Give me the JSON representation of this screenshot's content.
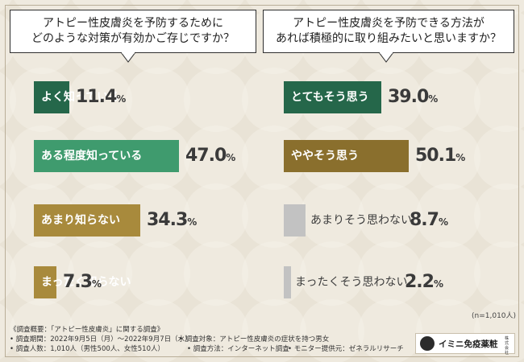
{
  "questions": {
    "left": [
      "アトピー性皮膚炎を予防するために",
      "どのような対策が有効かご存じですか？"
    ],
    "right": [
      "アトピー性皮膚炎を予防できる方法が",
      "あれば積極的に取り組みたいと思いますか？"
    ]
  },
  "chart_data": [
    {
      "type": "bar",
      "categories": [
        "よく知っている",
        "ある程度知っている",
        "あまり知らない",
        "まったく知らない"
      ],
      "values": [
        11.4,
        47.0,
        34.3,
        7.3
      ],
      "value_labels": [
        "11.4",
        "47.0",
        "34.3",
        "7.3"
      ],
      "unit": "%",
      "colors": [
        "#25674a",
        "#3f9b6e",
        "#a88a3c",
        "#a88a3c"
      ],
      "title": "アトピー性皮膚炎を予防するためにどのような対策が有効かご存じですか？"
    },
    {
      "type": "bar",
      "categories": [
        "とてもそう思う",
        "ややそう思う",
        "あまりそう思わない",
        "まったくそう思わない"
      ],
      "values": [
        39.0,
        50.1,
        8.7,
        2.2
      ],
      "value_labels": [
        "39.0",
        "50.1",
        "8.7",
        "2.2"
      ],
      "unit": "%",
      "colors": [
        "#25674a",
        "#8a6f2d",
        "#c2c2c2",
        "#c2c2c2"
      ],
      "title": "アトピー性皮膚炎を予防できる方法があれば積極的に取り組みたいと思いますか？"
    }
  ],
  "sample_size": "(n=1,010人)",
  "survey_notes": {
    "line1": "《調査概要：「アトピー性皮膚炎」に関する調査》",
    "period": "• 調査期間：2022年9月5日（月）～2022年9月7日（水）",
    "target": "• 調査対象：アトピー性皮膚炎の症状を持つ男女",
    "count": "• 調査人数：1,010人（男性500人、女性510人）",
    "method": "• 調査方法：インターネット調査",
    "monitor": "• モニター提供元：ゼネラルリサーチ"
  },
  "logo": {
    "name": "イミニ免疫薬粧",
    "sub": "株式会社"
  },
  "colors": {
    "background": "#e9e3d6",
    "pattern": "#f4f0e8"
  }
}
